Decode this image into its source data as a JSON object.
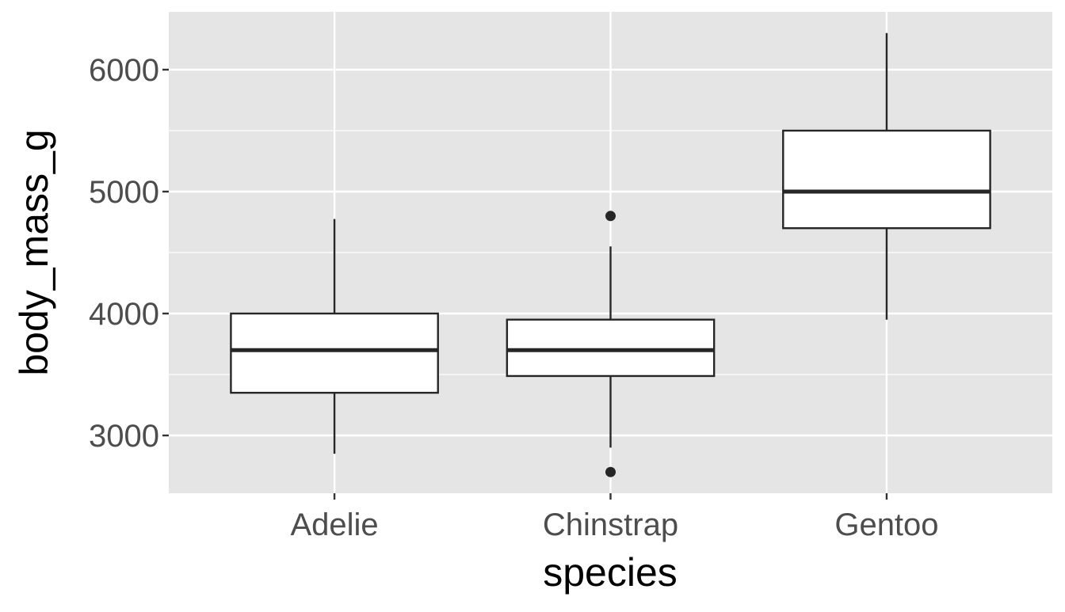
{
  "chart_data": {
    "type": "boxplot",
    "title": "",
    "xlabel": "species",
    "ylabel": "body_mass_g",
    "categories": [
      "Adelie",
      "Chinstrap",
      "Gentoo"
    ],
    "boxes": [
      {
        "name": "Adelie",
        "whisker_low": 2850,
        "q1": 3350,
        "median": 3700,
        "q3": 4000,
        "whisker_high": 4775,
        "outliers": []
      },
      {
        "name": "Chinstrap",
        "whisker_low": 2900,
        "q1": 3487.5,
        "median": 3700,
        "q3": 3950,
        "whisker_high": 4550,
        "outliers": [
          4800,
          2700
        ]
      },
      {
        "name": "Gentoo",
        "whisker_low": 3950,
        "q1": 4700,
        "median": 5000,
        "q3": 5500,
        "whisker_high": 6300,
        "outliers": []
      }
    ],
    "yticks": [
      3000,
      4000,
      5000,
      6000
    ],
    "ytick_labels": [
      "3000",
      "4000",
      "5000",
      "6000"
    ],
    "minor_y": [
      3500,
      4500,
      5500
    ],
    "ylim": [
      2526,
      6474
    ],
    "grid": true,
    "legend": "none",
    "colors": {
      "panel": "#e5e5e5",
      "grid": "#ffffff",
      "box_fill": "#ffffff",
      "line": "#262626",
      "tick_text": "#4d4d4d",
      "title_text": "#000000"
    }
  }
}
